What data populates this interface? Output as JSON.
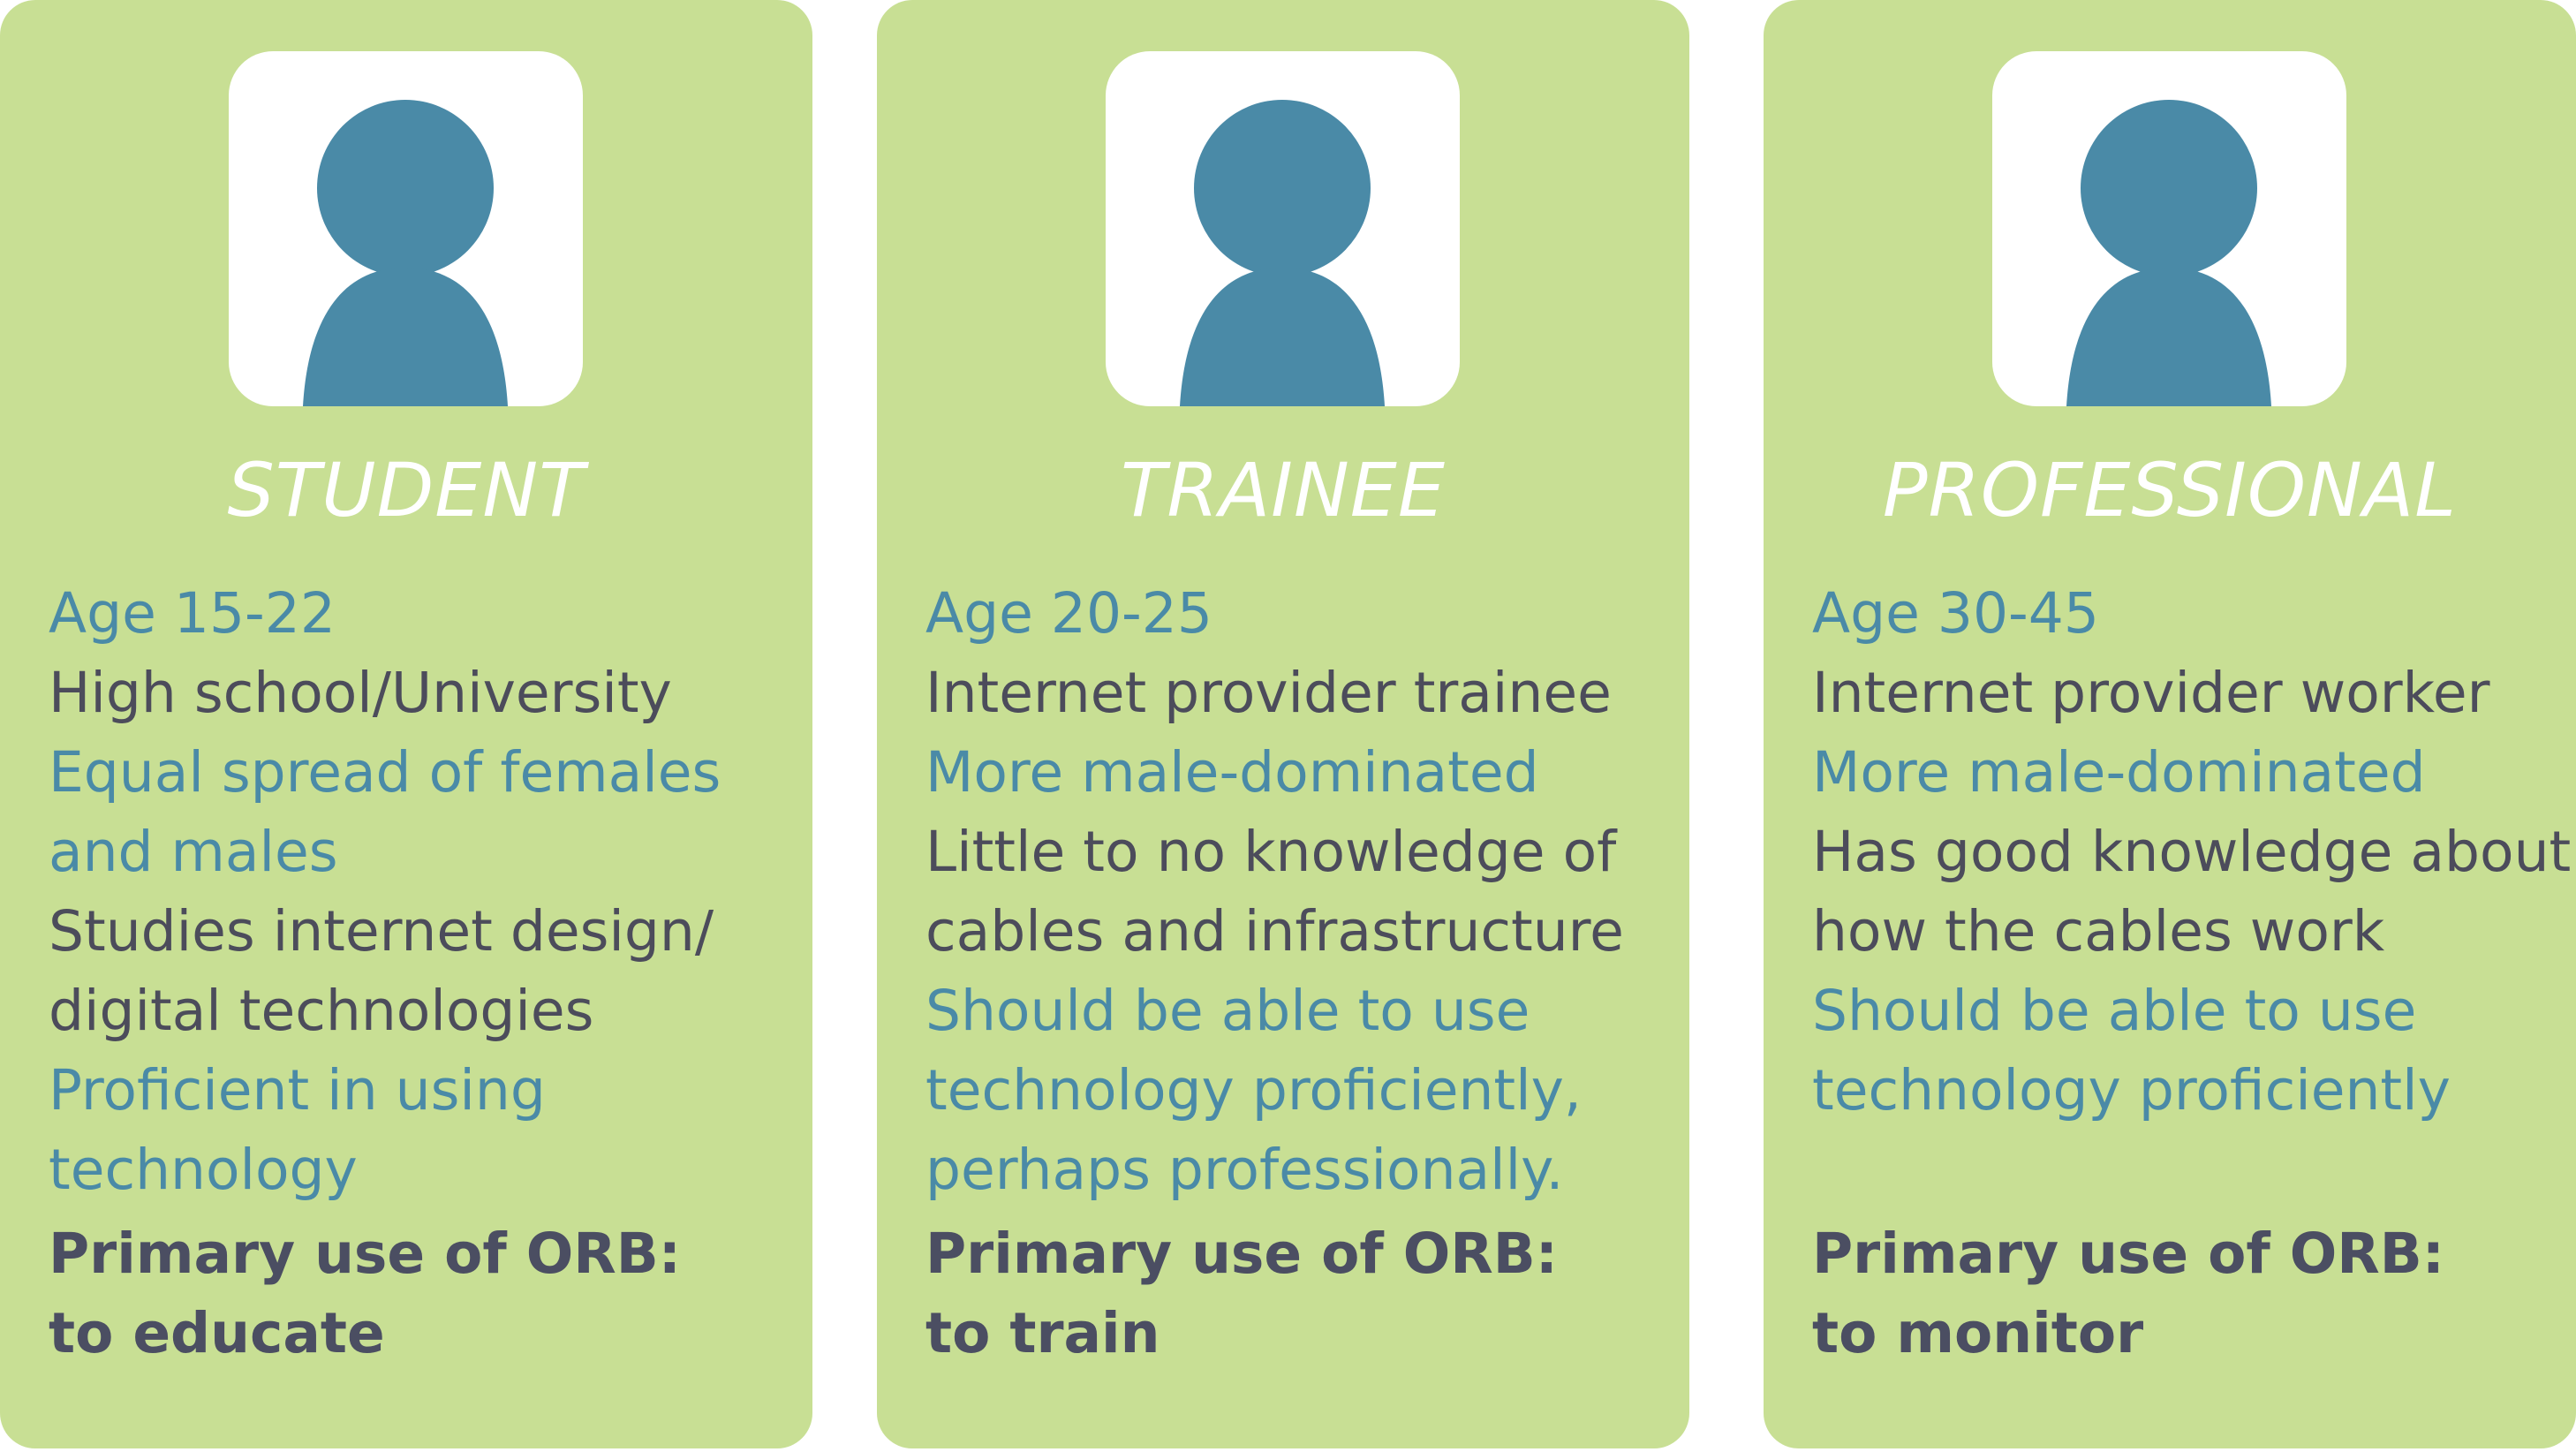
{
  "colors": {
    "card_background": "#c8df94",
    "title_text": "#ffffff",
    "accent_blue": "#4a8aa7",
    "dark_text": "#4c4c5b",
    "bold_text": "#4b4e62",
    "avatar_box": "#ffffff",
    "avatar_figure": "#4a8aa7"
  },
  "personas": [
    {
      "title": "STUDENT",
      "avatar_icon": "person-icon",
      "details": [
        {
          "text": "Age 15-22",
          "style": "blue"
        },
        {
          "text": "High school/University",
          "style": "dark"
        },
        {
          "text": "Equal spread of females",
          "style": "blue"
        },
        {
          "text": "and males",
          "style": "blue"
        },
        {
          "text": "Studies internet design/",
          "style": "dark"
        },
        {
          "text": "digital technologies",
          "style": "dark"
        },
        {
          "text": "Proficient in using",
          "style": "blue"
        },
        {
          "text": "technology",
          "style": "blue"
        }
      ],
      "primary_label": "Primary use of ORB:",
      "primary_value": "to educate"
    },
    {
      "title": "TRAINEE",
      "avatar_icon": "person-icon",
      "details": [
        {
          "text": "Age 20-25",
          "style": "blue"
        },
        {
          "text": "Internet provider trainee",
          "style": "dark"
        },
        {
          "text": "More male-dominated",
          "style": "blue"
        },
        {
          "text": "Little to no knowledge of",
          "style": "dark"
        },
        {
          "text": "cables and infrastructure",
          "style": "dark"
        },
        {
          "text": "Should be able to use",
          "style": "blue"
        },
        {
          "text": "technology proficiently,",
          "style": "blue"
        },
        {
          "text": "perhaps professionally.",
          "style": "blue"
        }
      ],
      "primary_label": "Primary use of ORB:",
      "primary_value": "to train"
    },
    {
      "title": "PROFESSIONAL",
      "avatar_icon": "person-icon",
      "details": [
        {
          "text": "Age 30-45",
          "style": "blue"
        },
        {
          "text": "Internet provider worker",
          "style": "dark"
        },
        {
          "text": "More male-dominated",
          "style": "blue"
        },
        {
          "text": "Has good knowledge about",
          "style": "dark"
        },
        {
          "text": "how the cables work",
          "style": "dark"
        },
        {
          "text": "Should be able to use",
          "style": "blue"
        },
        {
          "text": "technology proficiently",
          "style": "blue"
        }
      ],
      "primary_label": "Primary use of ORB:",
      "primary_value": "to monitor"
    }
  ]
}
